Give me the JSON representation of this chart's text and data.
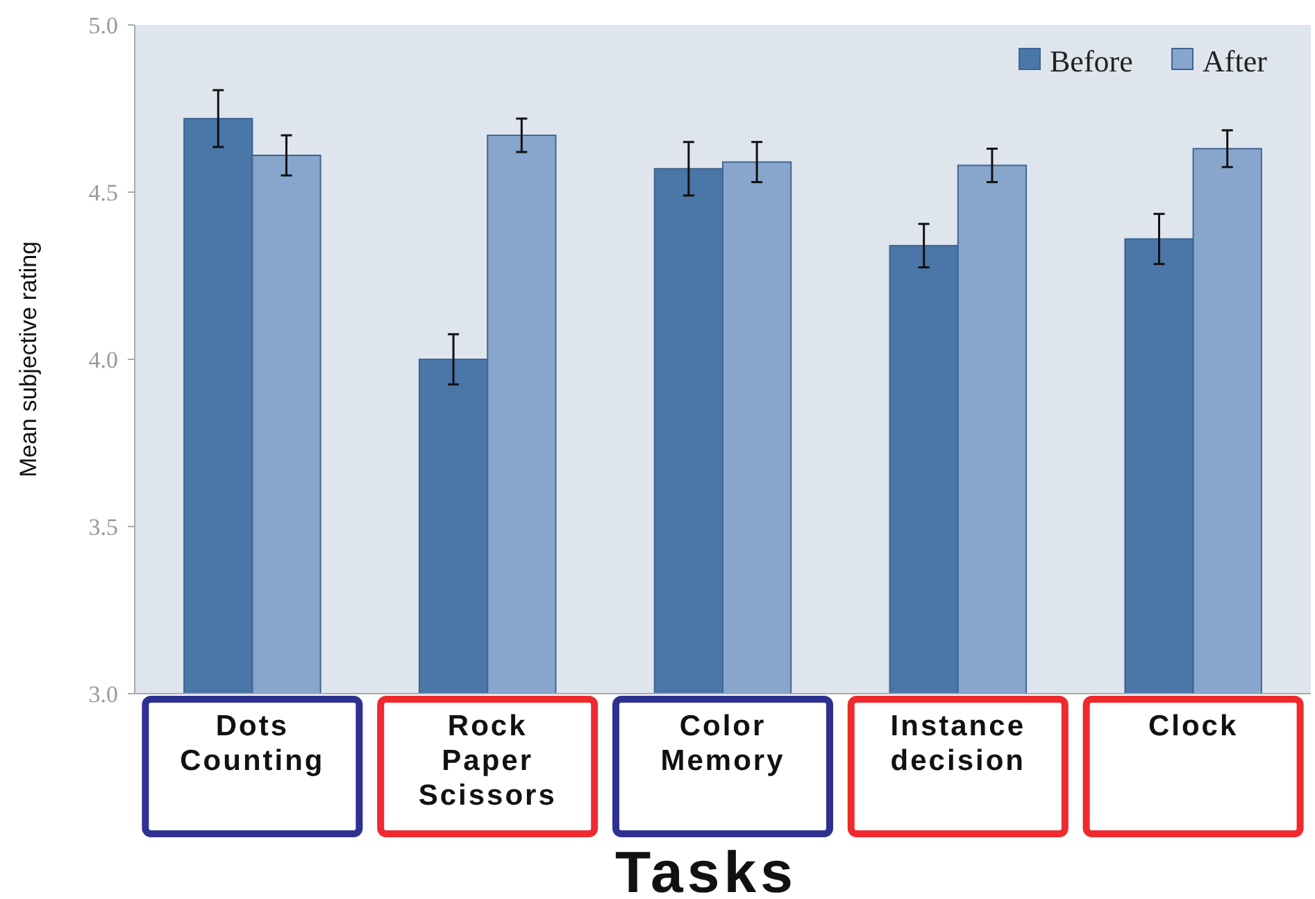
{
  "chart_data": {
    "type": "bar",
    "xlabel": "Tasks",
    "ylabel": "Mean subjective rating",
    "categories": [
      "Dots Counting",
      "Rock Paper Scissors",
      "Color Memory",
      "Instance decision",
      "Clock"
    ],
    "series": [
      {
        "name": "Before",
        "color": "#4a76a8",
        "values": [
          4.72,
          4.0,
          4.57,
          4.34,
          4.36
        ],
        "errors": [
          0.085,
          0.075,
          0.08,
          0.065,
          0.075
        ]
      },
      {
        "name": "After",
        "color": "#88a6cc",
        "values": [
          4.61,
          4.67,
          4.59,
          4.58,
          4.63
        ],
        "errors": [
          0.06,
          0.05,
          0.06,
          0.05,
          0.055
        ]
      }
    ],
    "ylim": [
      3,
      5
    ],
    "yticks": [
      {
        "value": 3,
        "label": "3.0"
      },
      {
        "value": 3.5,
        "label": "3.5"
      },
      {
        "value": 4,
        "label": "4.0"
      },
      {
        "value": 4.5,
        "label": "4.5"
      },
      {
        "value": 5,
        "label": "5.0"
      }
    ],
    "legend": "top right",
    "grid": false
  }
}
